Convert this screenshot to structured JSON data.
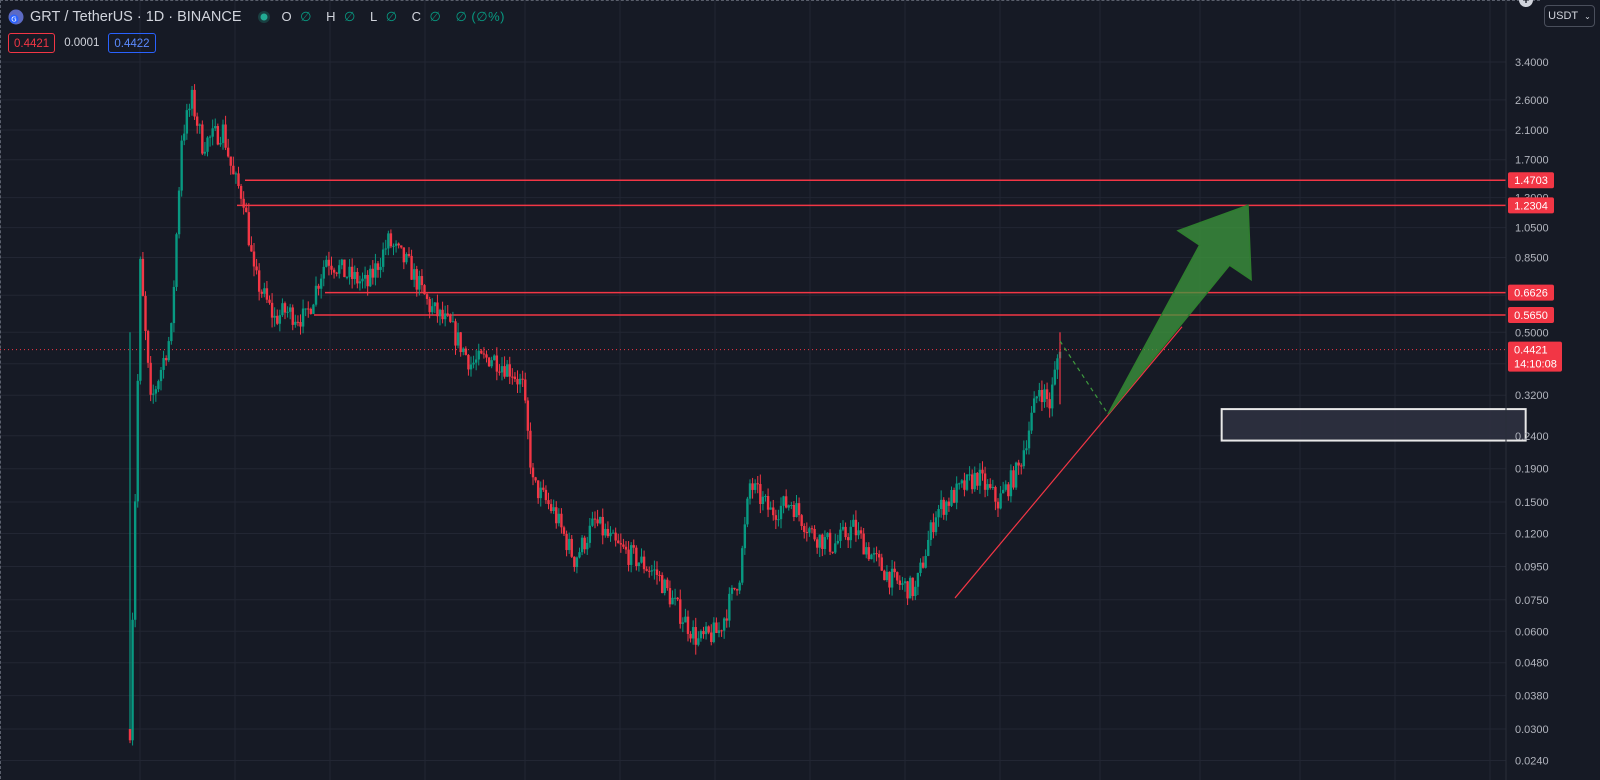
{
  "header": {
    "symbol": "GRT",
    "separator": "/",
    "quote_name": "TetherUS",
    "interval": "1D",
    "exchange": "BINANCE",
    "ohlc": {
      "o_label": "O",
      "o_value": "∅",
      "h_label": "H",
      "h_value": "∅",
      "l_label": "L",
      "l_value": "∅",
      "c_label": "C",
      "c_value": "∅",
      "chg": "∅ (∅%)"
    }
  },
  "quote": {
    "sell": "0.4421",
    "spread": "0.0001",
    "buy": "0.4422"
  },
  "currency_button": {
    "label": "USDT"
  },
  "colors": {
    "up": "#089981",
    "down": "#f23645",
    "bg": "#161a25",
    "grid": "#222633",
    "level": "#f23645",
    "arrow": "#3d9a3d",
    "zone": "#2e3140"
  },
  "chart_data": {
    "type": "candlestick",
    "title": "GRT / TetherUS · 1D · BINANCE",
    "scale": "log",
    "ylim": [
      0.024,
      4.2
    ],
    "y_ticks": [
      "3.4000",
      "2.6000",
      "2.1000",
      "1.7000",
      "1.3000",
      "1.0500",
      "0.8500",
      "0.6500",
      "0.5000",
      "0.4000",
      "0.3200",
      "0.2400",
      "0.1900",
      "0.1500",
      "0.1200",
      "0.0950",
      "0.0750",
      "0.0600",
      "0.0480",
      "0.0380",
      "0.0300",
      "0.0240"
    ],
    "last_price": {
      "value": "0.4421",
      "countdown": "14:10:08"
    },
    "horizontal_levels": [
      {
        "price": 1.4703,
        "label": "1.4703"
      },
      {
        "price": 1.2304,
        "label": "1.2304"
      },
      {
        "price": 0.6626,
        "label": "0.6626"
      },
      {
        "price": 0.565,
        "label": "0.5650"
      }
    ],
    "price_path": [
      [
        0,
        0.03
      ],
      [
        1,
        0.8
      ],
      [
        2,
        0.3
      ],
      [
        4,
        0.5
      ],
      [
        5,
        2.0
      ],
      [
        6,
        2.6
      ],
      [
        7,
        1.9
      ],
      [
        9,
        2.1
      ],
      [
        10,
        1.5
      ],
      [
        11,
        1.3
      ],
      [
        12,
        0.75
      ],
      [
        14,
        0.55
      ],
      [
        15,
        0.58
      ],
      [
        17,
        0.55
      ],
      [
        19,
        0.85
      ],
      [
        21,
        0.75
      ],
      [
        23,
        0.7
      ],
      [
        25,
        0.95
      ],
      [
        27,
        0.8
      ],
      [
        29,
        0.6
      ],
      [
        31,
        0.52
      ],
      [
        33,
        0.4
      ],
      [
        35,
        0.42
      ],
      [
        37,
        0.38
      ],
      [
        38,
        0.34
      ],
      [
        39,
        0.17
      ],
      [
        41,
        0.14
      ],
      [
        43,
        0.1
      ],
      [
        45,
        0.13
      ],
      [
        47,
        0.11
      ],
      [
        49,
        0.1
      ],
      [
        51,
        0.09
      ],
      [
        53,
        0.07
      ],
      [
        55,
        0.056
      ],
      [
        57,
        0.06
      ],
      [
        59,
        0.09
      ],
      [
        60,
        0.17
      ],
      [
        62,
        0.14
      ],
      [
        64,
        0.15
      ],
      [
        66,
        0.12
      ],
      [
        68,
        0.11
      ],
      [
        70,
        0.125
      ],
      [
        72,
        0.1
      ],
      [
        74,
        0.085
      ],
      [
        76,
        0.08
      ],
      [
        78,
        0.14
      ],
      [
        80,
        0.16
      ],
      [
        82,
        0.18
      ],
      [
        84,
        0.15
      ],
      [
        86,
        0.19
      ],
      [
        88,
        0.34
      ],
      [
        89,
        0.3
      ],
      [
        90,
        0.46
      ]
    ],
    "support_zone": {
      "low": 0.232,
      "high": 0.29,
      "x_start": 89,
      "x_end": 98
    },
    "trendline": {
      "from": [
        85,
        0.076
      ],
      "to": [
        99,
        0.52
      ]
    },
    "projection": {
      "dashed_to": [
        92,
        0.28
      ],
      "arrow_to": [
        98,
        1.2304
      ]
    }
  }
}
